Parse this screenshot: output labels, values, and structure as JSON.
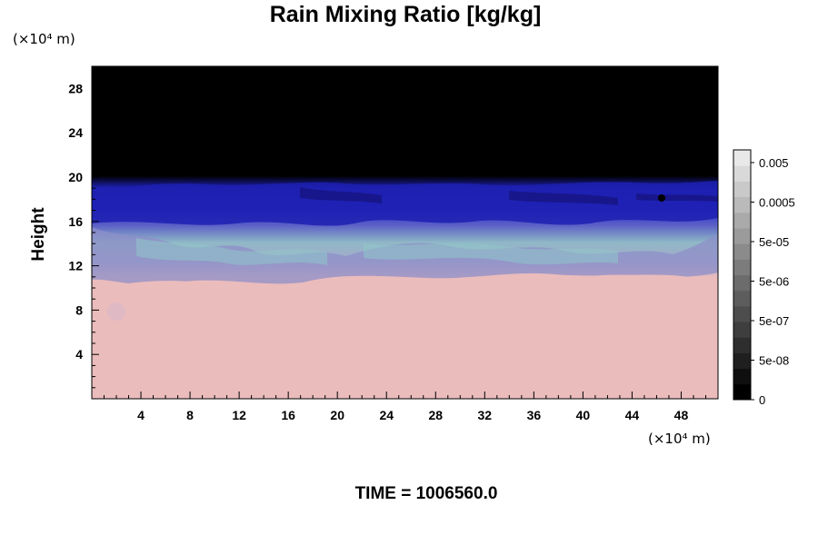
{
  "chart_data": {
    "type": "heatmap",
    "title": "Rain Mixing Ratio [kg/kg]",
    "ylabel": "Height",
    "xlabel": "",
    "y_unit": "(×10⁴ m)",
    "x_unit": "(×10⁴ m)",
    "xlim": [
      0,
      51
    ],
    "ylim": [
      0,
      30
    ],
    "xticks": [
      4,
      8,
      12,
      16,
      20,
      24,
      28,
      32,
      36,
      40,
      44,
      48
    ],
    "yticks": [
      4,
      8,
      12,
      16,
      20,
      24,
      28
    ],
    "colorbar": {
      "labels": [
        "0.005",
        "0.0005",
        "5e-05",
        "5e-06",
        "5e-07",
        "5e-08",
        "0"
      ],
      "level_count": 16
    },
    "regions": [
      {
        "name": "black-top",
        "y_from": 19.5,
        "y_to": 30,
        "color": "#000000"
      },
      {
        "name": "blue-band",
        "y_from": 15.0,
        "y_to": 19.5,
        "color": "#1d20b0"
      },
      {
        "name": "cyan-mix",
        "y_from": 11.0,
        "y_to": 15.0,
        "color": "#8ec0c6"
      },
      {
        "name": "pink-base",
        "y_from": 0,
        "y_to": 11.0,
        "color": "#ebbcbc"
      }
    ],
    "footer": "TIME = 1006560.0"
  },
  "colors": {
    "top": "#000000",
    "blue": "#1d20b0",
    "navy": "#15127a",
    "cyan": "#8ec0c6",
    "purple": "#8e8fc8",
    "pink": "#ebbcbc"
  }
}
